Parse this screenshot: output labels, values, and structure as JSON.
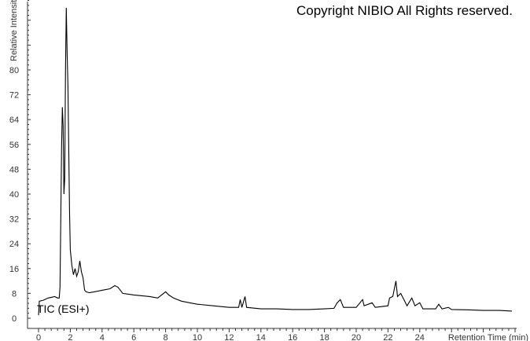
{
  "chart_data": {
    "type": "line",
    "annotation": "Copyright NIBIO All Rights reserved.",
    "trace_label": "TIC (ESI+)",
    "xlabel": "Retention Time (min)",
    "ylabel": "Relative Intensity",
    "xlim": [
      0,
      30
    ],
    "ylim": [
      0,
      104
    ],
    "xticks": [
      0,
      2,
      4,
      6,
      8,
      10,
      12,
      14,
      16,
      18,
      20,
      22,
      24
    ],
    "yticks": [
      0,
      8,
      16,
      24,
      32,
      40,
      48,
      56,
      64,
      72,
      80
    ],
    "grid": false,
    "line_color": "#000000",
    "series": [
      {
        "x": [
          0,
          0.05,
          0.3,
          0.6,
          0.9,
          1.0,
          1.2,
          1.3,
          1.35,
          1.4,
          1.45,
          1.5,
          1.55,
          1.6,
          1.65,
          1.7,
          1.75,
          1.8,
          1.85,
          1.9,
          1.95,
          2.0,
          2.1,
          2.2,
          2.3,
          2.4,
          2.5,
          2.6,
          2.7,
          2.8,
          2.9,
          3.0,
          3.2,
          3.5,
          4.0,
          4.5,
          4.8,
          5.0,
          5.3,
          6,
          7,
          7.5,
          8.0,
          8.2,
          8.5,
          9,
          9.5,
          10,
          11,
          12,
          12.6,
          12.7,
          12.8,
          13.0,
          13.1,
          14,
          15,
          16,
          17,
          18,
          18.6,
          18.8,
          19.0,
          19.2,
          20,
          20.4,
          20.5,
          21,
          21.2,
          22,
          22.1,
          22.3,
          22.5,
          22.6,
          22.8,
          23,
          23.2,
          23.5,
          23.7,
          24,
          24.2,
          25,
          25.2,
          25.4,
          25.8,
          26,
          27,
          28,
          29,
          29.8
        ],
        "y": [
          1,
          5.5,
          5.8,
          6.5,
          6.8,
          7,
          6.5,
          6.5,
          10,
          32,
          55,
          68,
          62,
          40,
          45,
          80,
          100,
          85,
          75,
          55,
          35,
          22,
          17,
          14,
          16,
          13.5,
          15,
          18.5,
          15,
          13,
          9,
          8.5,
          8.2,
          8.5,
          9,
          9.5,
          10.5,
          10,
          8,
          7.5,
          7,
          6.5,
          8.5,
          7.5,
          6.5,
          5.5,
          5,
          4.5,
          4,
          3.5,
          3.5,
          6,
          3.5,
          7,
          3.5,
          3,
          3,
          2.8,
          2.8,
          3,
          3.2,
          5,
          6,
          3.5,
          3.5,
          6,
          4,
          5,
          3.5,
          4,
          6.5,
          7,
          12,
          7,
          8,
          6,
          4,
          6.5,
          4,
          5,
          3,
          3,
          4.5,
          3,
          3.5,
          2.8,
          2.7,
          2.5,
          2.5,
          2.3
        ]
      }
    ]
  }
}
